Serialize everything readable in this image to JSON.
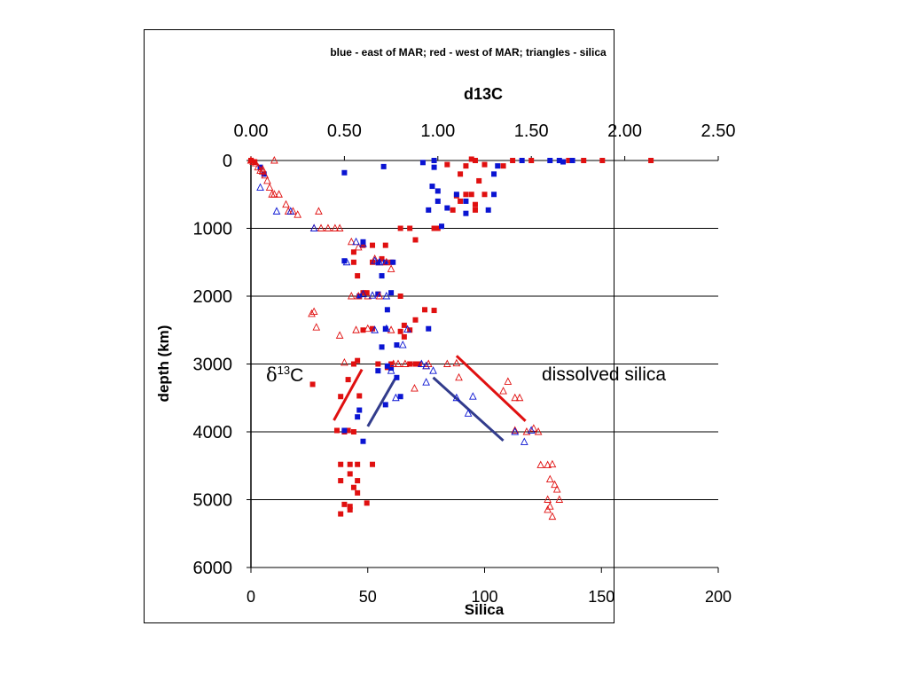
{
  "chart_data": {
    "type": "scatter",
    "title": "blue - east of MAR; red - west of MAR; triangles - silica",
    "top_axis": {
      "label": "d13C",
      "ticks": [
        "0.00",
        "0.50",
        "1.00",
        "1.50",
        "2.00",
        "2.50"
      ],
      "range": [
        0,
        2.5
      ]
    },
    "bottom_axis": {
      "label": "Silica",
      "ticks": [
        "0",
        "50",
        "100",
        "150",
        "200"
      ],
      "range": [
        0,
        200
      ]
    },
    "left_axis": {
      "label": "depth (km)",
      "ticks": [
        "0",
        "1000",
        "2000",
        "3000",
        "4000",
        "5000",
        "6000"
      ],
      "range": [
        0,
        6000
      ],
      "reversed": true
    },
    "grid": true,
    "annotations": [
      {
        "text": "δ13C",
        "parts": [
          "δ",
          "13",
          "C"
        ]
      },
      {
        "text": "dissolved silica"
      }
    ],
    "colors": {
      "east": "#0a14d2",
      "west": "#e01010",
      "blue_line": "#323c8c",
      "red_line": "#e01010"
    },
    "series": [
      {
        "marker": "square",
        "color": "#e01010",
        "axis": "d13C",
        "points": [
          [
            0.0,
            0
          ],
          [
            0.02,
            20
          ],
          [
            2.14,
            0
          ],
          [
            1.78,
            0
          ],
          [
            1.88,
            0
          ],
          [
            1.7,
            0
          ],
          [
            1.18,
            -20
          ],
          [
            1.2,
            0
          ],
          [
            1.25,
            60
          ],
          [
            1.15,
            80
          ],
          [
            1.05,
            60
          ],
          [
            1.35,
            80
          ],
          [
            1.4,
            0
          ],
          [
            1.5,
            0
          ],
          [
            1.12,
            200
          ],
          [
            1.22,
            300
          ],
          [
            1.18,
            500
          ],
          [
            1.15,
            500
          ],
          [
            1.1,
            520
          ],
          [
            1.25,
            500
          ],
          [
            1.12,
            600
          ],
          [
            1.2,
            650
          ],
          [
            1.2,
            730
          ],
          [
            1.08,
            730
          ],
          [
            0.98,
            1000
          ],
          [
            1.0,
            1000
          ],
          [
            0.8,
            1000
          ],
          [
            0.85,
            1000
          ],
          [
            0.88,
            1170
          ],
          [
            0.65,
            1250
          ],
          [
            0.72,
            1250
          ],
          [
            0.6,
            1250
          ],
          [
            0.55,
            1350
          ],
          [
            0.7,
            1450
          ],
          [
            0.55,
            1500
          ],
          [
            0.65,
            1500
          ],
          [
            0.75,
            1500
          ],
          [
            0.57,
            1700
          ],
          [
            0.6,
            1950
          ],
          [
            0.62,
            1950
          ],
          [
            0.68,
            1970
          ],
          [
            0.8,
            2000
          ],
          [
            0.93,
            2200
          ],
          [
            0.98,
            2210
          ],
          [
            0.88,
            2350
          ],
          [
            0.82,
            2430
          ],
          [
            0.85,
            2500
          ],
          [
            0.8,
            2520
          ],
          [
            0.65,
            2480
          ],
          [
            0.6,
            2500
          ],
          [
            0.82,
            2600
          ],
          [
            0.57,
            2950
          ],
          [
            0.55,
            3000
          ],
          [
            0.68,
            3000
          ],
          [
            0.75,
            3000
          ],
          [
            0.85,
            3000
          ],
          [
            0.88,
            3000
          ],
          [
            0.9,
            3000
          ],
          [
            0.73,
            3050
          ],
          [
            0.52,
            3230
          ],
          [
            0.33,
            3300
          ],
          [
            0.48,
            3480
          ],
          [
            0.58,
            3470
          ],
          [
            0.46,
            3980
          ],
          [
            0.52,
            3980
          ],
          [
            0.55,
            4000
          ],
          [
            0.5,
            4000
          ],
          [
            0.48,
            4480
          ],
          [
            0.53,
            4480
          ],
          [
            0.57,
            4480
          ],
          [
            0.65,
            4480
          ],
          [
            0.48,
            4720
          ],
          [
            0.53,
            4620
          ],
          [
            0.57,
            4720
          ],
          [
            0.55,
            4820
          ],
          [
            0.57,
            4900
          ],
          [
            0.5,
            5070
          ],
          [
            0.53,
            5150
          ],
          [
            0.62,
            5050
          ],
          [
            0.53,
            5100
          ],
          [
            0.48,
            5210
          ]
        ]
      },
      {
        "marker": "square",
        "color": "#0a14d2",
        "axis": "d13C",
        "points": [
          [
            0.05,
            100
          ],
          [
            0.07,
            200
          ],
          [
            0.5,
            180
          ],
          [
            0.71,
            90
          ],
          [
            0.92,
            30
          ],
          [
            0.98,
            0
          ],
          [
            0.98,
            100
          ],
          [
            1.32,
            80
          ],
          [
            1.45,
            0
          ],
          [
            1.6,
            0
          ],
          [
            1.65,
            0
          ],
          [
            1.67,
            20
          ],
          [
            1.72,
            0
          ],
          [
            1.3,
            200
          ],
          [
            0.97,
            380
          ],
          [
            1.0,
            450
          ],
          [
            1.1,
            500
          ],
          [
            1.3,
            500
          ],
          [
            1.0,
            600
          ],
          [
            1.15,
            600
          ],
          [
            1.05,
            700
          ],
          [
            0.95,
            730
          ],
          [
            1.27,
            730
          ],
          [
            1.15,
            780
          ],
          [
            1.02,
            970
          ],
          [
            0.6,
            1200
          ],
          [
            0.5,
            1480
          ],
          [
            0.68,
            1500
          ],
          [
            0.72,
            1500
          ],
          [
            0.76,
            1500
          ],
          [
            0.7,
            1700
          ],
          [
            0.75,
            1950
          ],
          [
            0.68,
            1970
          ],
          [
            0.58,
            2000
          ],
          [
            0.73,
            2200
          ],
          [
            0.72,
            2480
          ],
          [
            0.95,
            2480
          ],
          [
            0.78,
            2720
          ],
          [
            0.7,
            2750
          ],
          [
            0.73,
            3030
          ],
          [
            0.75,
            3060
          ],
          [
            0.68,
            3100
          ],
          [
            0.78,
            3200
          ],
          [
            0.8,
            3480
          ],
          [
            0.72,
            3600
          ],
          [
            0.58,
            3680
          ],
          [
            0.57,
            3780
          ],
          [
            0.5,
            3980
          ],
          [
            0.6,
            4140
          ]
        ]
      },
      {
        "marker": "triangle",
        "color": "#e01010",
        "axis": "Silica",
        "points": [
          [
            0,
            0
          ],
          [
            1,
            20
          ],
          [
            2,
            40
          ],
          [
            3,
            100
          ],
          [
            4,
            150
          ],
          [
            5,
            160
          ],
          [
            10,
            0
          ],
          [
            5,
            130
          ],
          [
            6,
            220
          ],
          [
            7,
            300
          ],
          [
            8,
            400
          ],
          [
            9,
            500
          ],
          [
            10,
            500
          ],
          [
            12,
            500
          ],
          [
            15,
            650
          ],
          [
            16,
            750
          ],
          [
            18,
            750
          ],
          [
            20,
            800
          ],
          [
            29,
            750
          ],
          [
            27,
            1000
          ],
          [
            30,
            1000
          ],
          [
            33,
            1000
          ],
          [
            36,
            1000
          ],
          [
            38,
            1000
          ],
          [
            43,
            1200
          ],
          [
            46,
            1280
          ],
          [
            53,
            1450
          ],
          [
            55,
            1500
          ],
          [
            58,
            1500
          ],
          [
            60,
            1600
          ],
          [
            43,
            2000
          ],
          [
            46,
            2000
          ],
          [
            50,
            2000
          ],
          [
            55,
            2000
          ],
          [
            27,
            2230
          ],
          [
            26,
            2260
          ],
          [
            28,
            2460
          ],
          [
            38,
            2580
          ],
          [
            45,
            2500
          ],
          [
            60,
            2500
          ],
          [
            50,
            2480
          ],
          [
            40,
            2980
          ],
          [
            61,
            3000
          ],
          [
            63,
            3000
          ],
          [
            66,
            3000
          ],
          [
            76,
            3000
          ],
          [
            75,
            3030
          ],
          [
            84,
            3000
          ],
          [
            88,
            2990
          ],
          [
            70,
            3360
          ],
          [
            89,
            3200
          ],
          [
            110,
            3260
          ],
          [
            108,
            3400
          ],
          [
            115,
            3500
          ],
          [
            113,
            3500
          ],
          [
            113,
            3980
          ],
          [
            118,
            4000
          ],
          [
            123,
            4000
          ],
          [
            121,
            3950
          ],
          [
            124,
            4490
          ],
          [
            127,
            4490
          ],
          [
            129,
            4480
          ],
          [
            128,
            4700
          ],
          [
            130,
            4780
          ],
          [
            131,
            4850
          ],
          [
            127,
            5000
          ],
          [
            132,
            5000
          ],
          [
            128,
            5100
          ],
          [
            127,
            5150
          ],
          [
            129,
            5250
          ]
        ]
      },
      {
        "marker": "triangle",
        "color": "#0a14d2",
        "axis": "Silica",
        "points": [
          [
            4,
            400
          ],
          [
            11,
            750
          ],
          [
            17,
            750
          ],
          [
            27,
            1000
          ],
          [
            45,
            1200
          ],
          [
            48,
            1230
          ],
          [
            41,
            1500
          ],
          [
            53,
            1480
          ],
          [
            55,
            1500
          ],
          [
            48,
            1970
          ],
          [
            52,
            1990
          ],
          [
            58,
            2000
          ],
          [
            58,
            2480
          ],
          [
            67,
            2490
          ],
          [
            53,
            2500
          ],
          [
            65,
            2720
          ],
          [
            73,
            3000
          ],
          [
            75,
            3030
          ],
          [
            78,
            3100
          ],
          [
            60,
            3100
          ],
          [
            75,
            3270
          ],
          [
            62,
            3500
          ],
          [
            95,
            3480
          ],
          [
            93,
            3730
          ],
          [
            88,
            3500
          ],
          [
            113,
            4000
          ],
          [
            117,
            4150
          ],
          [
            120,
            3980
          ]
        ]
      }
    ],
    "trend_lines": [
      {
        "color": "#e01010",
        "x_silica": [
          35.5,
          47.5
        ],
        "depth": [
          3830,
          3080
        ]
      },
      {
        "color": "#323c8c",
        "x_silica": [
          50,
          62.5
        ],
        "depth": [
          3920,
          3170
        ]
      },
      {
        "color": "#323c8c",
        "x_silica": [
          78,
          108
        ],
        "depth": [
          3200,
          4130
        ]
      },
      {
        "color": "#e01010",
        "x_silica": [
          88,
          117.5
        ],
        "depth": [
          2880,
          3840
        ]
      }
    ]
  }
}
